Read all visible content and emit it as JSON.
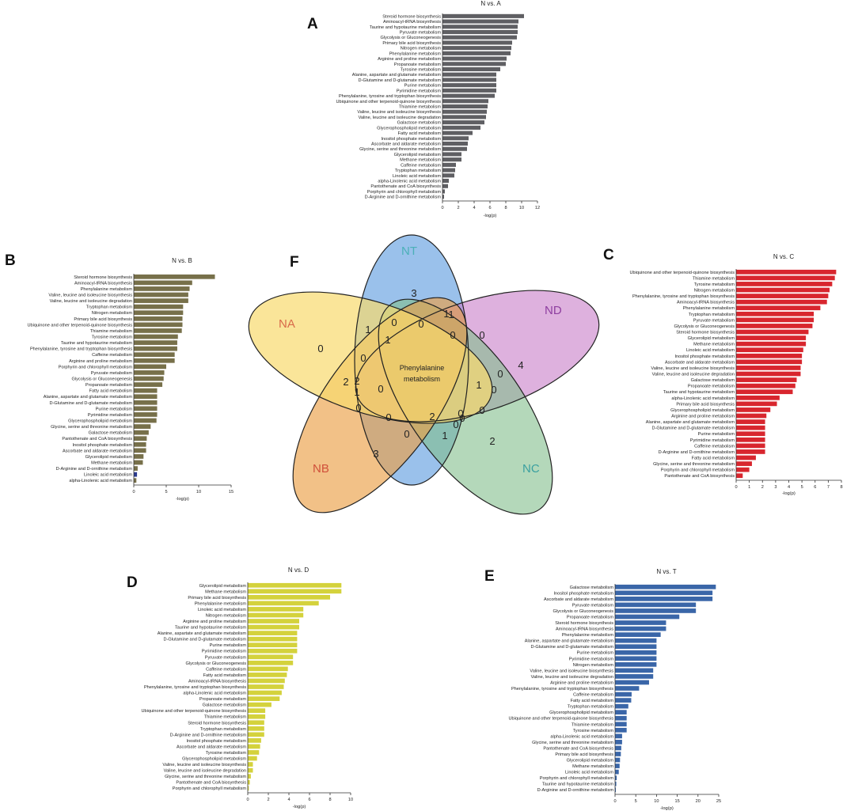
{
  "panels": {
    "A": "A",
    "B": "B",
    "C": "C",
    "D": "D",
    "E": "E",
    "F": "F"
  },
  "chart_data": [
    {
      "id": "A",
      "type": "bar",
      "orientation": "horizontal",
      "title": "N vs. A",
      "xlabel": "-log(p)",
      "color": "#5f5f63",
      "xlim": [
        0,
        12
      ],
      "ticks": [
        0,
        2,
        4,
        6,
        8,
        10,
        12
      ],
      "categories": [
        "Steroid hormone biosynthesis",
        "Aminoacyl-tRNA biosynthesis",
        "Taurine and hypotaurine metabolism",
        "Pyruvate metabolism",
        "Glycolysis or Gluconeogenesis",
        "Primary bile acid biosynthesis",
        "Nitrogen metabolism",
        "Phenylalanine metabolism",
        "Arginine and proline metabolism",
        "Propanoate metabolism",
        "Tyrosine metabolism",
        "Alanine, aspartate and glutamate metabolism",
        "D-Glutamine and D-glutamate metabolism",
        "Purine metabolism",
        "Pyrimidine metabolism",
        "Phenylalanine, tyrosine and tryptophan biosynthesis",
        "Ubiquinone and other terpenoid-quinone biosynthesis",
        "Thiamine metabolism",
        "Valine, leucine and isoleucine biosynthesis",
        "Valine, leucine and isoleucine degradation",
        "Galactose metabolism",
        "Glycerophospholipid metabolism",
        "Fatty acid metabolism",
        "Inositol phosphate metabolism",
        "Ascorbate and aldarate metabolism",
        "Glycine, serine and threonine metabolism",
        "Glycerolipid metabolism",
        "Methane metabolism",
        "Caffeine metabolism",
        "Tryptophan metabolism",
        "Linoleic acid metabolism",
        "alpha-Linolenic acid metabolism",
        "Pantothenate and CoA biosynthesis",
        "Porphyrin and chlorophyll metabolism",
        "D-Arginine and D-ornithine metabolism"
      ],
      "values": [
        10.3,
        9.6,
        9.5,
        9.5,
        9.4,
        8.8,
        8.7,
        8.6,
        8.1,
        8.0,
        7.3,
        6.8,
        6.8,
        6.8,
        6.8,
        6.6,
        5.8,
        5.7,
        5.6,
        5.5,
        5.3,
        4.8,
        3.8,
        3.3,
        3.2,
        3.1,
        2.4,
        2.4,
        1.7,
        1.6,
        1.5,
        0.8,
        0.7,
        0.3,
        0.2
      ]
    },
    {
      "id": "B",
      "type": "bar",
      "orientation": "horizontal",
      "title": "N vs. B",
      "xlabel": "-log(p)",
      "color": "#77704a",
      "xlim": [
        0,
        15
      ],
      "ticks": [
        0,
        5,
        10,
        15
      ],
      "categories": [
        "Steroid hormone biosynthesis",
        "Aminoacyl-tRNA biosynthesis",
        "Phenylalanine metabolism",
        "Valine, leucine and isoleucine biosynthesis",
        "Valine, leucine and isoleucine degradation",
        "Tryptophan metabolism",
        "Nitrogen metabolism",
        "Primary bile acid biosynthesis",
        "Ubiquinone and other terpenoid-quinone biosynthesis",
        "Thiamine metabolism",
        "Tyrosine metabolism",
        "Taurine and hypotaurine metabolism",
        "Phenylalanine, tyrosine and tryptophan biosynthesis",
        "Caffeine metabolism",
        "Arginine and proline metabolism",
        "Porphyrin and chlorophyll metabolism",
        "Pyruvate metabolism",
        "Glycolysis or Gluconeogenesis",
        "Propanoate metabolism",
        "Fatty acid metabolism",
        "Alanine, aspartate and glutamate metabolism",
        "D-Glutamine and D-glutamate metabolism",
        "Purine metabolism",
        "Pyrimidine metabolism",
        "Glycerophospholipid metabolism",
        "Glycine, serine and threonine metabolism",
        "Galactose metabolism",
        "Pantothenate and CoA biosynthesis",
        "Inositol phosphate metabolism",
        "Ascorbate and aldarate metabolism",
        "Glycerolipid metabolism",
        "Methane metabolism",
        "D-Arginine and D-ornithine metabolism",
        "Linoleic acid metabolism",
        "alpha-Linolenic acid metabolism"
      ],
      "values": [
        12.5,
        9.0,
        8.6,
        8.4,
        8.4,
        7.6,
        7.6,
        7.5,
        7.5,
        7.4,
        6.8,
        6.7,
        6.7,
        6.3,
        6.3,
        5.0,
        4.7,
        4.6,
        4.4,
        3.6,
        3.6,
        3.6,
        3.6,
        3.6,
        3.5,
        2.6,
        2.3,
        2.0,
        1.9,
        1.9,
        1.5,
        1.4,
        0.6,
        0.5,
        0.4
      ],
      "highlight_index": 33,
      "highlight_color": "#2b3b8f"
    },
    {
      "id": "C",
      "type": "bar",
      "orientation": "horizontal",
      "title": "N vs. C",
      "xlabel": "-log(p)",
      "color": "#d8262e",
      "xlim": [
        0,
        8
      ],
      "ticks": [
        0,
        1,
        2,
        3,
        4,
        5,
        6,
        7,
        8
      ],
      "categories": [
        "Ubiquinone and other terpenoid-quinone biosynthesis",
        "Thiamine metabolism",
        "Tyrosine metabolism",
        "Nitrogen metabolism",
        "Phenylalanine, tyrosine and tryptophan biosynthesis",
        "Aminoacyl-tRNA biosynthesis",
        "Phenylalanine metabolism",
        "Tryptophan metabolism",
        "Pyruvate metabolism",
        "Glycolysis or Gluconeogenesis",
        "Steroid hormone biosynthesis",
        "Glycerolipid metabolism",
        "Methane metabolism",
        "Linoleic acid metabolism",
        "Inositol phosphate metabolism",
        "Ascorbate and aldarate metabolism",
        "Valine, leucine and isoleucine biosynthesis",
        "Valine, leucine and isoleucine degradation",
        "Galactose metabolism",
        "Propanoate metabolism",
        "Taurine and hypotaurine metabolism",
        "alpha-Linolenic acid metabolism",
        "Primary bile acid biosynthesis",
        "Glycerophospholipid metabolism",
        "Arginine and proline metabolism",
        "Alanine, aspartate and glutamate metabolism",
        "D-Glutamine and D-glutamate metabolism",
        "Purine metabolism",
        "Pyrimidine metabolism",
        "Caffeine metabolism",
        "D-Arginine and D-ornithine metabolism",
        "Fatty acid metabolism",
        "Glycine, serine and threonine metabolism",
        "Porphyrin and chlorophyll metabolism",
        "Pantothenate and CoA biosynthesis"
      ],
      "values": [
        7.6,
        7.5,
        7.3,
        7.1,
        7.0,
        6.9,
        6.4,
        5.9,
        5.9,
        5.8,
        5.5,
        5.3,
        5.3,
        5.1,
        5.0,
        5.0,
        4.9,
        4.9,
        4.6,
        4.5,
        4.3,
        3.3,
        3.1,
        2.6,
        2.3,
        2.2,
        2.2,
        2.2,
        2.2,
        2.2,
        2.2,
        1.5,
        1.2,
        1.0,
        0.5
      ]
    },
    {
      "id": "D",
      "type": "bar",
      "orientation": "horizontal",
      "title": "N vs. D",
      "xlabel": "-log(p)",
      "color": "#d4d23c",
      "xlim": [
        0,
        10
      ],
      "ticks": [
        0,
        2,
        4,
        6,
        8,
        10
      ],
      "categories": [
        "Glycerolipid metabolism",
        "Methane metabolism",
        "Primary bile acid biosynthesis",
        "Phenylalanine metabolism",
        "Linoleic acid metabolism",
        "Nitrogen metabolism",
        "Arginine and proline metabolism",
        "Taurine and hypotaurine metabolism",
        "Alanine, aspartate and glutamate metabolism",
        "D-Glutamine and D-glutamate metabolism",
        "Purine metabolism",
        "Pyrimidine metabolism",
        "Pyruvate metabolism",
        "Glycolysis or Gluconeogenesis",
        "Caffeine metabolism",
        "Fatty acid metabolism",
        "Aminoacyl-tRNA biosynthesis",
        "Phenylalanine, tyrosine and tryptophan biosynthesis",
        "alpha-Linolenic acid metabolism",
        "Propanoate metabolism",
        "Galactose metabolism",
        "Ubiquinone and other terpenoid-quinone biosynthesis",
        "Thiamine metabolism",
        "Steroid hormone biosynthesis",
        "Tryptophan metabolism",
        "D-Arginine and D-ornithine metabolism",
        "Inositol phosphate metabolism",
        "Ascorbate and aldarate metabolism",
        "Tyrosine metabolism",
        "Glycerophospholipid metabolism",
        "Valine, leucine and isoleucine biosynthesis",
        "Valine, leucine and isoleucine degradation",
        "Glycine, serine and threonine metabolism",
        "Pantothenate and CoA biosynthesis",
        "Porphyrin and chlorophyll metabolism"
      ],
      "values": [
        9.1,
        9.1,
        8.0,
        6.9,
        5.4,
        5.4,
        5.0,
        5.0,
        4.8,
        4.8,
        4.8,
        4.8,
        4.4,
        4.4,
        3.9,
        3.8,
        3.6,
        3.5,
        3.3,
        3.1,
        2.3,
        1.7,
        1.7,
        1.6,
        1.6,
        1.6,
        1.3,
        1.2,
        1.1,
        0.9,
        0.5,
        0.5,
        0.3,
        0.2,
        0.1
      ]
    },
    {
      "id": "E",
      "type": "bar",
      "orientation": "horizontal",
      "title": "N vs. T",
      "xlabel": "-log(p)",
      "color": "#3a66a8",
      "xlim": [
        0,
        25
      ],
      "ticks": [
        0,
        5,
        10,
        15,
        20,
        25
      ],
      "categories": [
        "Galactose metabolism",
        "Inositol phosphate metabolism",
        "Ascorbate and aldarate metabolism",
        "Pyruvate metabolism",
        "Glycolysis or Gluconeogenesis",
        "Propanoate metabolism",
        "Steroid hormone biosynthesis",
        "Aminoacyl-tRNA biosynthesis",
        "Phenylalanine metabolism",
        "Alanine, aspartate and glutamate metabolism",
        "D-Glutamine and D-glutamate metabolism",
        "Purine metabolism",
        "Pyrimidine metabolism",
        "Nitrogen metabolism",
        "Valine, leucine and isoleucine biosynthesis",
        "Valine, leucine and isoleucine degradation",
        "Arginine and proline metabolism",
        "Phenylalanine, tyrosine and tryptophan biosynthesis",
        "Caffeine metabolism",
        "Fatty acid metabolism",
        "Tryptophan metabolism",
        "Glycerophospholipid metabolism",
        "Ubiquinone and other terpenoid-quinone biosynthesis",
        "Thiamine metabolism",
        "Tyrosine metabolism",
        "alpha-Linolenic acid metabolism",
        "Glycine, serine and threonine metabolism",
        "Pantothenate and CoA biosynthesis",
        "Primary bile acid biosynthesis",
        "Glycerolipid metabolism",
        "Methane metabolism",
        "Linoleic acid metabolism",
        "Porphyrin and chlorophyll metabolism",
        "Taurine and hypotaurine metabolism",
        "D-Arginine and D-ornithine metabolism"
      ],
      "values": [
        24.3,
        23.5,
        23.5,
        19.5,
        19.5,
        15.5,
        12.3,
        12.3,
        11.0,
        10.0,
        10.0,
        10.0,
        10.0,
        10.0,
        9.2,
        9.2,
        8.2,
        5.8,
        4.0,
        3.9,
        3.2,
        2.8,
        2.8,
        2.8,
        2.8,
        1.7,
        1.7,
        1.5,
        1.4,
        1.2,
        1.1,
        0.9,
        0.4,
        0.3,
        0.2
      ]
    }
  ],
  "venn": {
    "sets": [
      {
        "label": "NT",
        "color": "#4a90d9",
        "fill": "rgba(100,160,225,0.65)",
        "label_color": "#4bb0b8"
      },
      {
        "label": "ND",
        "color": "#8e3fa0",
        "fill": "rgba(200,125,200,0.6)",
        "label_color": "#8e3fa0"
      },
      {
        "label": "NC",
        "color": "#4a9a6a",
        "fill": "rgba(130,190,140,0.6)",
        "label_color": "#3aa0a0"
      },
      {
        "label": "NB",
        "color": "#c06a28",
        "fill": "rgba(235,160,70,0.65)",
        "label_color": "#d0503a"
      },
      {
        "label": "NA",
        "color": "#d9b440",
        "fill": "rgba(248,218,110,0.7)",
        "label_color": "#d86a4a"
      }
    ],
    "center_text_line1": "Phenylalanine",
    "center_text_line2": "metabolism",
    "counts": [
      "3",
      "4",
      "2",
      "3",
      "0",
      "0",
      "1",
      "1",
      "0",
      "1",
      "0",
      "0",
      "0",
      "2",
      "1",
      "0",
      "0",
      "2",
      "0",
      "0",
      "0",
      "2",
      "0",
      "0",
      "1",
      "1",
      "0",
      "0",
      "1",
      "0"
    ]
  }
}
